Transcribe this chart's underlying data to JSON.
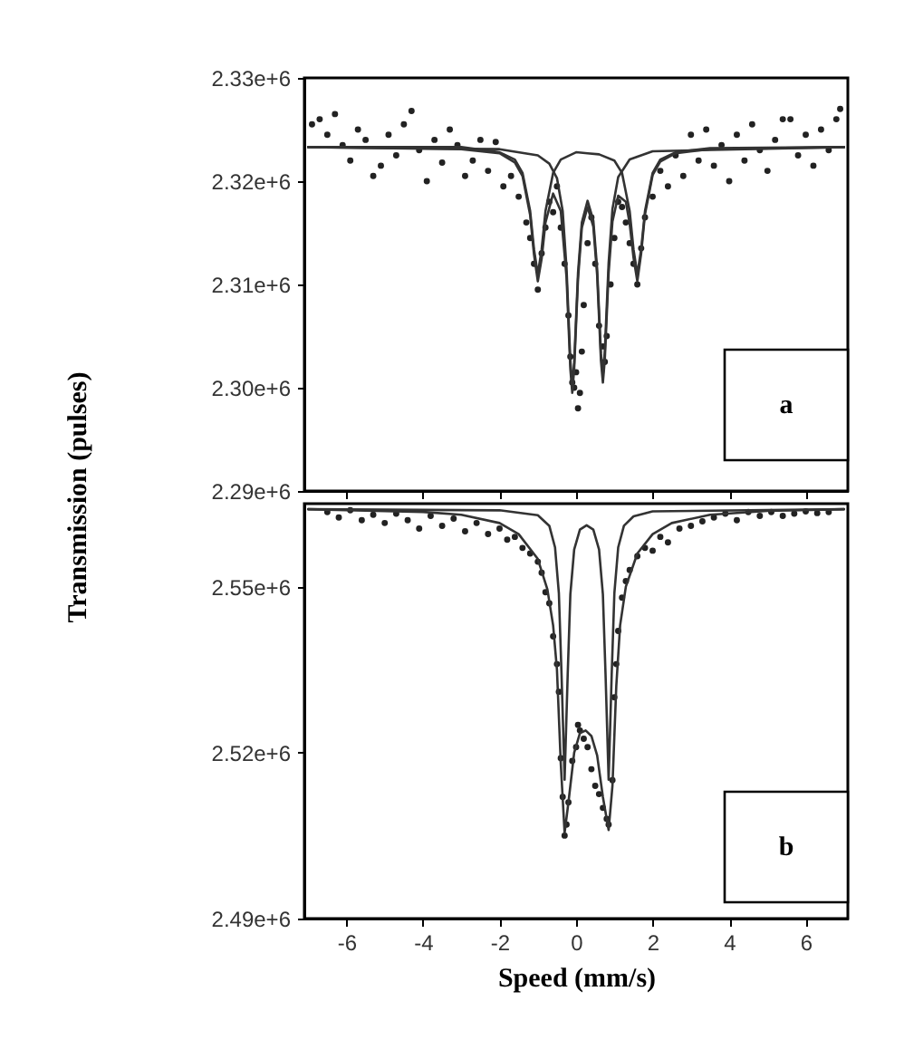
{
  "chart_data": [
    {
      "type": "scatter",
      "ylabel": "Transmission (pulses)",
      "xlim": [
        -7.1,
        7.1
      ],
      "xticks": [
        -6,
        -4,
        -2,
        0,
        2,
        4,
        6
      ],
      "ylim": [
        2290000,
        2330000
      ],
      "yticks": [
        {
          "value": 2290000,
          "label": "2.29e+6"
        },
        {
          "value": 2300000,
          "label": "2.30e+6"
        },
        {
          "value": 2310000,
          "label": "2.31e+6"
        },
        {
          "value": 2320000,
          "label": "2.32e+6"
        },
        {
          "value": 2330000,
          "label": "2.33e+6"
        }
      ],
      "tick_labels": "y",
      "annotations": [
        "a"
      ],
      "series": [
        {
          "type": "scatter",
          "color": "#222222",
          "x": [
            -6.9,
            -6.7,
            -6.5,
            -6.3,
            -6.1,
            -5.9,
            -5.7,
            -5.5,
            -5.3,
            -5.1,
            -4.9,
            -4.7,
            -4.5,
            -4.3,
            -4.1,
            -3.9,
            -3.7,
            -3.5,
            -3.3,
            -3.1,
            -2.9,
            -2.7,
            -2.5,
            -2.3,
            -2.1,
            -1.9,
            -1.7,
            -1.5,
            -1.3,
            -1.2,
            -1.1,
            -1.0,
            -0.9,
            -0.8,
            -0.7,
            -0.6,
            -0.5,
            -0.4,
            -0.3,
            -0.2,
            -0.15,
            -0.1,
            -0.05,
            0.0,
            0.05,
            0.1,
            0.15,
            0.2,
            0.3,
            0.4,
            0.5,
            0.6,
            0.7,
            0.75,
            0.8,
            0.9,
            1.0,
            1.1,
            1.2,
            1.3,
            1.4,
            1.5,
            1.6,
            1.7,
            1.8,
            2.0,
            2.2,
            2.4,
            2.6,
            2.8,
            3.0,
            3.2,
            3.4,
            3.6,
            3.8,
            4.0,
            4.2,
            4.4,
            4.6,
            4.8,
            5.0,
            5.2,
            5.4,
            5.6,
            5.8,
            6.0,
            6.2,
            6.4,
            6.6,
            6.8,
            6.9
          ],
          "values": [
            2325500,
            2326000,
            2324500,
            2326500,
            2323500,
            2322000,
            2325000,
            2324000,
            2320500,
            2321500,
            2324500,
            2322500,
            2325500,
            2326800,
            2323000,
            2320000,
            2324000,
            2321800,
            2325000,
            2323500,
            2320500,
            2322000,
            2324000,
            2321000,
            2323800,
            2319500,
            2320500,
            2318500,
            2316000,
            2314500,
            2312000,
            2309500,
            2313000,
            2315500,
            2318000,
            2317000,
            2319500,
            2315500,
            2312000,
            2307000,
            2303000,
            2300500,
            2300000,
            2301500,
            2298000,
            2299500,
            2303500,
            2308000,
            2314000,
            2316500,
            2312000,
            2306000,
            2304000,
            2302500,
            2305000,
            2310000,
            2314500,
            2318000,
            2317500,
            2316000,
            2314000,
            2312000,
            2310000,
            2313500,
            2316500,
            2318500,
            2321000,
            2319500,
            2322500,
            2320500,
            2324500,
            2322000,
            2325000,
            2321500,
            2323500,
            2320000,
            2324500,
            2322000,
            2325500,
            2323000,
            2321000,
            2324000,
            2326000,
            2326000,
            2322500,
            2324500,
            2321500,
            2325000,
            2323000,
            2326000,
            2327000
          ]
        },
        {
          "type": "line",
          "color": "#333333",
          "x": [
            -7,
            -3,
            -2,
            -1.6,
            -1.4,
            -1.2,
            -1.1,
            -1.0,
            -0.9,
            -0.8,
            -0.6,
            -0.4,
            0,
            0.3,
            0.6,
            1.0,
            1.2,
            1.4,
            1.5,
            1.6,
            1.7,
            1.8,
            2.0,
            2.2,
            2.6,
            3.5,
            7
          ],
          "values": [
            2323300,
            2323300,
            2322800,
            2322100,
            2320800,
            2317100,
            2313400,
            2311000,
            2313400,
            2317100,
            2320800,
            2322100,
            2322800,
            2322700,
            2322600,
            2322000,
            2320800,
            2317100,
            2313400,
            2311000,
            2313400,
            2317100,
            2320800,
            2322100,
            2322800,
            2323200,
            2323300
          ]
        },
        {
          "type": "line",
          "color": "#333333",
          "x": [
            -7,
            -2,
            -1,
            -0.7,
            -0.5,
            -0.35,
            -0.25,
            -0.15,
            -0.1,
            -0.05,
            0.05,
            0.15,
            0.3,
            0.45,
            0.55,
            0.65,
            0.7,
            0.75,
            0.85,
            0.95,
            1.1,
            1.4,
            2,
            7
          ],
          "values": [
            2323300,
            2323100,
            2322500,
            2321700,
            2320300,
            2317100,
            2311600,
            2302600,
            2300300,
            2302400,
            2311100,
            2316000,
            2318100,
            2316200,
            2311500,
            2303300,
            2301200,
            2303500,
            2312100,
            2317300,
            2320400,
            2322100,
            2322900,
            2323300
          ]
        },
        {
          "type": "line",
          "color": "#333333",
          "x": [
            -7,
            -3,
            -2,
            -1.6,
            -1.4,
            -1.2,
            -1.1,
            -1.0,
            -0.9,
            -0.8,
            -0.6,
            -0.4,
            -0.25,
            -0.15,
            -0.1,
            -0.05,
            0.05,
            0.15,
            0.3,
            0.45,
            0.55,
            0.65,
            0.7,
            0.75,
            0.85,
            0.95,
            1.1,
            1.3,
            1.4,
            1.5,
            1.6,
            1.7,
            1.8,
            2.0,
            2.2,
            2.6,
            3.5,
            7
          ],
          "values": [
            2323300,
            2323100,
            2322700,
            2321800,
            2320500,
            2316700,
            2312900,
            2310300,
            2312500,
            2316000,
            2318800,
            2317100,
            2310700,
            2301800,
            2299500,
            2301800,
            2310500,
            2315500,
            2317500,
            2315600,
            2310900,
            2302600,
            2300500,
            2302700,
            2311100,
            2316100,
            2318600,
            2318000,
            2315900,
            2312600,
            2310300,
            2313000,
            2316800,
            2320600,
            2321900,
            2322700,
            2323100,
            2323300
          ]
        }
      ]
    },
    {
      "type": "scatter",
      "xlabel": "Speed (mm/s)",
      "xlim": [
        -7.1,
        7.1
      ],
      "xticks": [
        -6,
        -4,
        -2,
        0,
        2,
        4,
        6
      ],
      "ylim": [
        2490000,
        2565000
      ],
      "yticks": [
        {
          "value": 2490000,
          "label": "2.49e+6"
        },
        {
          "value": 2520000,
          "label": "2.52e+6"
        },
        {
          "value": 2550000,
          "label": "2.55e+6"
        }
      ],
      "annotations": [
        "b"
      ],
      "series": [
        {
          "type": "scatter",
          "color": "#222222",
          "x": [
            -6.5,
            -6.2,
            -5.9,
            -5.6,
            -5.3,
            -5.0,
            -4.7,
            -4.4,
            -4.1,
            -3.8,
            -3.5,
            -3.2,
            -2.9,
            -2.6,
            -2.3,
            -2.0,
            -1.8,
            -1.6,
            -1.4,
            -1.2,
            -1.0,
            -0.9,
            -0.8,
            -0.7,
            -0.6,
            -0.5,
            -0.45,
            -0.4,
            -0.35,
            -0.3,
            -0.25,
            -0.2,
            -0.1,
            0.0,
            0.05,
            0.1,
            0.2,
            0.3,
            0.4,
            0.5,
            0.6,
            0.7,
            0.8,
            0.85,
            0.95,
            1.0,
            1.05,
            1.1,
            1.2,
            1.3,
            1.4,
            1.6,
            1.8,
            2.0,
            2.2,
            2.4,
            2.7,
            3.0,
            3.3,
            3.6,
            3.9,
            4.2,
            4.5,
            4.8,
            5.1,
            5.4,
            5.7,
            6.0,
            6.3,
            6.6
          ],
          "values": [
            2563500,
            2562500,
            2563800,
            2562000,
            2563000,
            2561500,
            2563200,
            2562000,
            2560500,
            2562800,
            2561000,
            2562300,
            2560000,
            2561500,
            2559500,
            2560500,
            2558500,
            2559000,
            2557000,
            2556000,
            2554500,
            2552500,
            2549000,
            2547000,
            2541000,
            2536000,
            2531000,
            2519000,
            2512000,
            2505000,
            2507000,
            2511000,
            2518500,
            2521000,
            2525000,
            2524000,
            2522500,
            2521000,
            2517000,
            2514000,
            2512500,
            2510000,
            2508000,
            2507000,
            2515000,
            2530000,
            2536000,
            2542000,
            2548000,
            2551000,
            2553000,
            2555500,
            2557000,
            2556500,
            2559000,
            2558000,
            2560500,
            2561000,
            2561800,
            2562500,
            2563200,
            2562000,
            2563500,
            2562800,
            2563500,
            2562800,
            2563200,
            2563600,
            2563300,
            2563500
          ]
        },
        {
          "type": "line",
          "color": "#333333",
          "x": [
            -7,
            -2,
            -1,
            -0.7,
            -0.55,
            -0.45,
            -0.38,
            -0.3,
            -0.22,
            -0.15,
            -0.05,
            0.1,
            0.275,
            0.45,
            0.6,
            0.7,
            0.77,
            0.85,
            0.93,
            1.0,
            1.1,
            1.25,
            1.5,
            2,
            7
          ],
          "values": [
            2564000,
            2563800,
            2562900,
            2561000,
            2557100,
            2548800,
            2534100,
            2515100,
            2534000,
            2548600,
            2556700,
            2560300,
            2561100,
            2560300,
            2556700,
            2548600,
            2534000,
            2515100,
            2534100,
            2548800,
            2557100,
            2561000,
            2562700,
            2563600,
            2564000
          ]
        },
        {
          "type": "line",
          "color": "#333333",
          "x": [
            -7,
            -4,
            -3,
            -2,
            -1.5,
            -1.0,
            -0.75,
            -0.6,
            -0.5,
            -0.4,
            -0.3,
            -0.2,
            -0.05,
            0.1,
            0.25,
            0.4,
            0.55,
            0.7,
            0.85,
            0.95,
            1.05,
            1.15,
            1.3,
            1.6,
            2.0,
            2.5,
            3.5,
            5,
            7
          ],
          "values": [
            2564000,
            2563500,
            2563000,
            2561500,
            2559500,
            2555000,
            2549500,
            2543000,
            2535000,
            2518000,
            2505500,
            2511000,
            2520000,
            2523500,
            2524000,
            2523000,
            2519500,
            2512000,
            2506000,
            2514000,
            2532000,
            2543000,
            2550000,
            2556000,
            2559500,
            2561500,
            2563000,
            2563700,
            2564000
          ]
        }
      ]
    }
  ]
}
